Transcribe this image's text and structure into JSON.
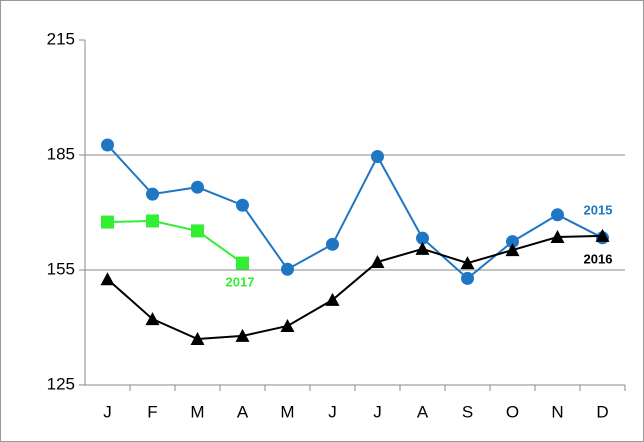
{
  "chart_data": {
    "type": "line",
    "categories": [
      "J",
      "F",
      "M",
      "A",
      "M",
      "J",
      "J",
      "A",
      "S",
      "O",
      "N",
      "D"
    ],
    "series": [
      {
        "name": "2015",
        "color": "#1f77c4",
        "marker": "circle",
        "values": [
          187.6,
          174.8,
          176.6,
          171.9,
          155.2,
          161.7,
          184.6,
          163.3,
          152.8,
          162.4,
          169.4,
          163.4
        ]
      },
      {
        "name": "2016",
        "color": "#000000",
        "marker": "triangle",
        "values": [
          152.6,
          142.2,
          137,
          137.8,
          140.4,
          147.2,
          157.1,
          160.5,
          156.8,
          160.2,
          163.6,
          163.9
        ]
      },
      {
        "name": "2017",
        "color": "#33ee33",
        "marker": "square",
        "values": [
          167.5,
          167.8,
          165.2,
          156.8,
          null,
          null,
          null,
          null,
          null,
          null,
          null,
          null
        ]
      }
    ],
    "ylim": [
      125,
      215
    ],
    "yticks": [
      125,
      155,
      185,
      215
    ],
    "grid": true
  }
}
